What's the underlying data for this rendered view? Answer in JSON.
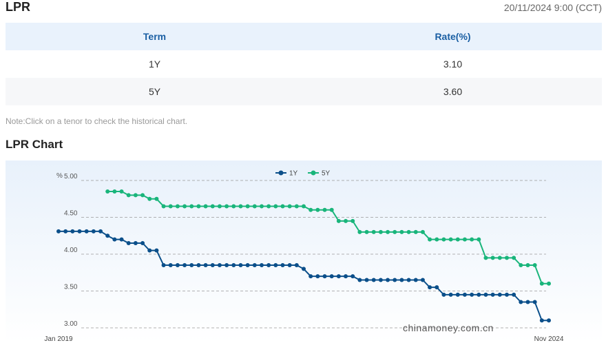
{
  "header": {
    "title": "LPR",
    "timestamp": "20/11/2024 9:00 (CCT)"
  },
  "table": {
    "columns": [
      "Term",
      "Rate(%)"
    ],
    "rows": [
      [
        "1Y",
        "3.10"
      ],
      [
        "5Y",
        "3.60"
      ]
    ]
  },
  "note": "Note:Click on a tenor to check the historical chart.",
  "chart_title": "LPR Chart",
  "chart_data": {
    "type": "line",
    "y_label": "%",
    "watermark": "chinamoney.com.cn",
    "categories": [
      "Jan 2019",
      null,
      null,
      null,
      null,
      null,
      null,
      null,
      null,
      null,
      null,
      null,
      null,
      null,
      null,
      null,
      null,
      null,
      null,
      null,
      null,
      null,
      null,
      null,
      null,
      null,
      null,
      null,
      null,
      null,
      null,
      null,
      null,
      null,
      null,
      null,
      null,
      null,
      null,
      null,
      null,
      null,
      null,
      null,
      null,
      null,
      null,
      null,
      null,
      null,
      null,
      null,
      null,
      null,
      null,
      null,
      null,
      null,
      null,
      null,
      null,
      null,
      null,
      null,
      null,
      null,
      null,
      null,
      null,
      null,
      "Nov 2024"
    ],
    "series": [
      {
        "name": "1Y",
        "color": "#0b4f8a",
        "values": [
          4.31,
          4.31,
          4.31,
          4.31,
          4.31,
          4.31,
          4.31,
          4.25,
          4.2,
          4.2,
          4.15,
          4.15,
          4.15,
          4.05,
          4.05,
          3.85,
          3.85,
          3.85,
          3.85,
          3.85,
          3.85,
          3.85,
          3.85,
          3.85,
          3.85,
          3.85,
          3.85,
          3.85,
          3.85,
          3.85,
          3.85,
          3.85,
          3.85,
          3.85,
          3.85,
          3.8,
          3.7,
          3.7,
          3.7,
          3.7,
          3.7,
          3.7,
          3.7,
          3.65,
          3.65,
          3.65,
          3.65,
          3.65,
          3.65,
          3.65,
          3.65,
          3.65,
          3.65,
          3.55,
          3.55,
          3.45,
          3.45,
          3.45,
          3.45,
          3.45,
          3.45,
          3.45,
          3.45,
          3.45,
          3.45,
          3.45,
          3.35,
          3.35,
          3.35,
          3.1,
          3.1
        ]
      },
      {
        "name": "5Y",
        "color": "#19b57b",
        "values": [
          null,
          null,
          null,
          null,
          null,
          null,
          null,
          4.85,
          4.85,
          4.85,
          4.8,
          4.8,
          4.8,
          4.75,
          4.75,
          4.65,
          4.65,
          4.65,
          4.65,
          4.65,
          4.65,
          4.65,
          4.65,
          4.65,
          4.65,
          4.65,
          4.65,
          4.65,
          4.65,
          4.65,
          4.65,
          4.65,
          4.65,
          4.65,
          4.65,
          4.65,
          4.6,
          4.6,
          4.6,
          4.6,
          4.45,
          4.45,
          4.45,
          4.3,
          4.3,
          4.3,
          4.3,
          4.3,
          4.3,
          4.3,
          4.3,
          4.3,
          4.3,
          4.2,
          4.2,
          4.2,
          4.2,
          4.2,
          4.2,
          4.2,
          4.2,
          3.95,
          3.95,
          3.95,
          3.95,
          3.95,
          3.85,
          3.85,
          3.85,
          3.6,
          3.6
        ]
      }
    ],
    "ylim": [
      3,
      5
    ],
    "yticks": [
      {
        "value": 3,
        "label": "3.00"
      },
      {
        "value": 3.5,
        "label": "3.50"
      },
      {
        "value": 4,
        "label": "4.00"
      },
      {
        "value": 4.5,
        "label": "4.50"
      },
      {
        "value": 5,
        "label": "5.00"
      }
    ],
    "grid": true,
    "legend": "top"
  }
}
